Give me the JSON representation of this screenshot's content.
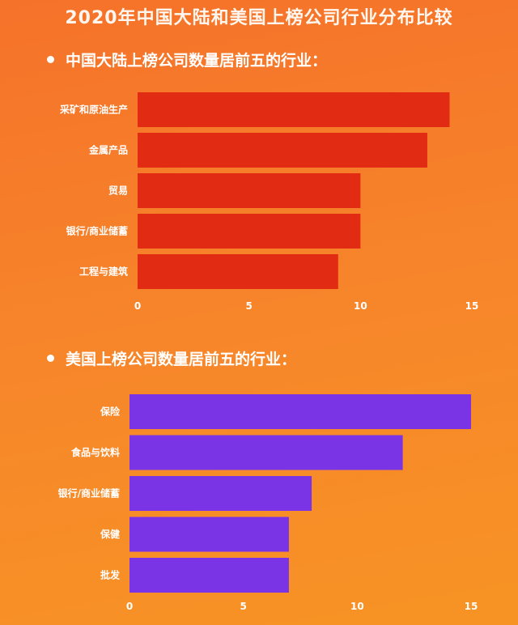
{
  "title": "2020年中国大陆和美国上榜公司行业分布比较",
  "colors": {
    "china_bar": "#e12b12",
    "us_bar": "#7b33e6"
  },
  "chart_data": [
    {
      "type": "bar",
      "orientation": "horizontal",
      "title": "中国大陆上榜公司数量居前五的行业：",
      "categories": [
        "采矿和原油生产",
        "金属产品",
        "贸易",
        "银行/商业储蓄",
        "工程与建筑"
      ],
      "values": [
        14,
        13,
        10,
        10,
        9
      ],
      "xlim": [
        0,
        15
      ],
      "ticks": [
        0,
        5,
        10,
        15
      ],
      "grid": false,
      "color": "#e12b12"
    },
    {
      "type": "bar",
      "orientation": "horizontal",
      "title": "美国上榜公司数量居前五的行业：",
      "categories": [
        "保险",
        "食品与饮料",
        "银行/商业储蓄",
        "保健",
        "批发"
      ],
      "values": [
        15,
        12,
        8,
        7,
        7
      ],
      "xlim": [
        0,
        15
      ],
      "ticks": [
        0,
        5,
        10,
        15
      ],
      "grid": false,
      "color": "#7b33e6"
    }
  ]
}
